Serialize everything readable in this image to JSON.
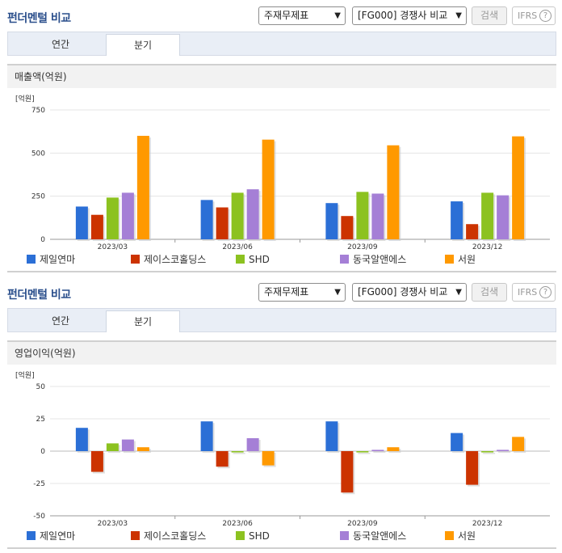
{
  "sections": [
    {
      "title": "펀더멘털 비교",
      "select1": "주재무제표",
      "select2": "[FG000] 경쟁사 비교",
      "search_label": "검색",
      "ifrs_label": "IFRS",
      "help_glyph": "?",
      "tabs": [
        "연간",
        "분기"
      ],
      "active_tab": 1,
      "panel_title": "매출액(억원)"
    },
    {
      "title": "펀더멘털 비교",
      "select1": "주재무제표",
      "select2": "[FG000] 경쟁사 비교",
      "search_label": "검색",
      "ifrs_label": "IFRS",
      "help_glyph": "?",
      "tabs": [
        "연간",
        "분기"
      ],
      "active_tab": 1,
      "panel_title": "영업이익(억원)"
    }
  ],
  "colors": {
    "제일연마": "#2b6fd6",
    "제이스코홀딩스": "#cc3300",
    "SHD": "#8cc220",
    "동국알앤에스": "#a57fd6",
    "서원": "#ff9900"
  },
  "chart_data": [
    {
      "type": "bar",
      "unit": "[억원]",
      "categories": [
        "2023/03",
        "2023/06",
        "2023/09",
        "2023/12"
      ],
      "ylim": [
        0,
        750
      ],
      "yticks": [
        0,
        250,
        500,
        750
      ],
      "series": [
        {
          "name": "제일연마",
          "values": [
            190,
            228,
            210,
            220
          ]
        },
        {
          "name": "제이스코홀딩스",
          "values": [
            142,
            185,
            135,
            88
          ]
        },
        {
          "name": "SHD",
          "values": [
            242,
            270,
            275,
            270
          ]
        },
        {
          "name": "동국알앤에스",
          "values": [
            270,
            290,
            265,
            255
          ]
        },
        {
          "name": "서원",
          "values": [
            600,
            578,
            545,
            597
          ]
        }
      ],
      "legend_position": "bottom"
    },
    {
      "type": "bar",
      "unit": "[억원]",
      "categories": [
        "2023/03",
        "2023/06",
        "2023/09",
        "2023/12"
      ],
      "ylim": [
        -50,
        50
      ],
      "yticks": [
        -50,
        -25,
        0,
        25,
        50
      ],
      "series": [
        {
          "name": "제일연마",
          "values": [
            18,
            23,
            23,
            14
          ]
        },
        {
          "name": "제이스코홀딩스",
          "values": [
            -16,
            -12,
            -32,
            -26
          ]
        },
        {
          "name": "SHD",
          "values": [
            6,
            -1,
            -1,
            -1
          ]
        },
        {
          "name": "동국알앤에스",
          "values": [
            9,
            10,
            1,
            1
          ]
        },
        {
          "name": "서원",
          "values": [
            3,
            -11,
            3,
            11
          ]
        }
      ],
      "legend_position": "bottom"
    }
  ]
}
